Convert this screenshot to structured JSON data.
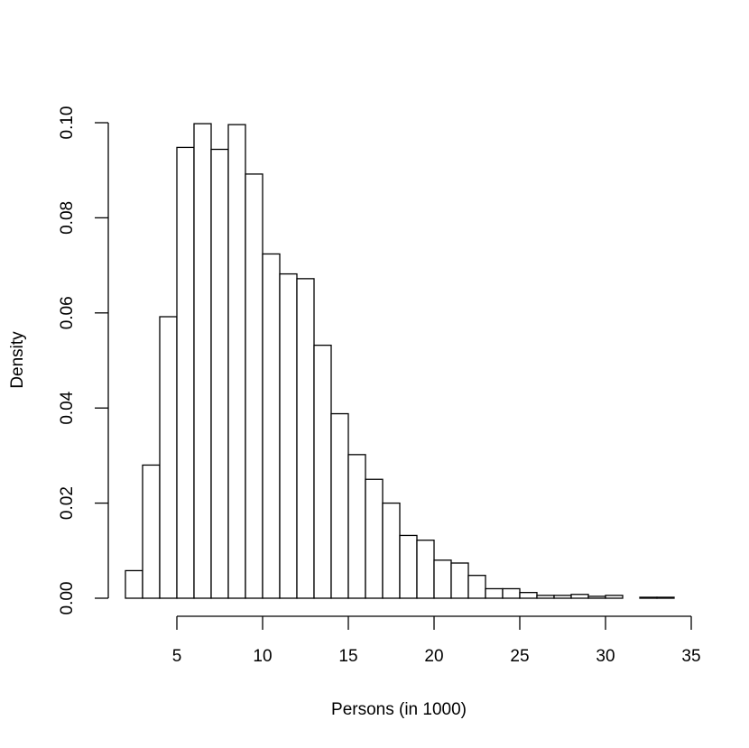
{
  "chart_data": {
    "type": "bar",
    "subtype": "histogram",
    "xlabel": "Persons (in 1000)",
    "ylabel": "Density",
    "bin_width": 1,
    "bins": [
      {
        "x0": 2,
        "x1": 3,
        "density": 0.0058
      },
      {
        "x0": 3,
        "x1": 4,
        "density": 0.028
      },
      {
        "x0": 4,
        "x1": 5,
        "density": 0.0592
      },
      {
        "x0": 5,
        "x1": 6,
        "density": 0.0948
      },
      {
        "x0": 6,
        "x1": 7,
        "density": 0.0998
      },
      {
        "x0": 7,
        "x1": 8,
        "density": 0.0944
      },
      {
        "x0": 8,
        "x1": 9,
        "density": 0.0996
      },
      {
        "x0": 9,
        "x1": 10,
        "density": 0.0892
      },
      {
        "x0": 10,
        "x1": 11,
        "density": 0.0724
      },
      {
        "x0": 11,
        "x1": 12,
        "density": 0.0682
      },
      {
        "x0": 12,
        "x1": 13,
        "density": 0.0672
      },
      {
        "x0": 13,
        "x1": 14,
        "density": 0.0532
      },
      {
        "x0": 14,
        "x1": 15,
        "density": 0.0388
      },
      {
        "x0": 15,
        "x1": 16,
        "density": 0.0302
      },
      {
        "x0": 16,
        "x1": 17,
        "density": 0.025
      },
      {
        "x0": 17,
        "x1": 18,
        "density": 0.02
      },
      {
        "x0": 18,
        "x1": 19,
        "density": 0.0132
      },
      {
        "x0": 19,
        "x1": 20,
        "density": 0.0122
      },
      {
        "x0": 20,
        "x1": 21,
        "density": 0.008
      },
      {
        "x0": 21,
        "x1": 22,
        "density": 0.0074
      },
      {
        "x0": 22,
        "x1": 23,
        "density": 0.0048
      },
      {
        "x0": 23,
        "x1": 24,
        "density": 0.002
      },
      {
        "x0": 24,
        "x1": 25,
        "density": 0.002
      },
      {
        "x0": 25,
        "x1": 26,
        "density": 0.0012
      },
      {
        "x0": 26,
        "x1": 27,
        "density": 0.0006
      },
      {
        "x0": 27,
        "x1": 28,
        "density": 0.0006
      },
      {
        "x0": 28,
        "x1": 29,
        "density": 0.0008
      },
      {
        "x0": 29,
        "x1": 30,
        "density": 0.0004
      },
      {
        "x0": 30,
        "x1": 31,
        "density": 0.0006
      },
      {
        "x0": 31,
        "x1": 32,
        "density": 0.0
      },
      {
        "x0": 32,
        "x1": 33,
        "density": 0.0002
      },
      {
        "x0": 33,
        "x1": 34,
        "density": 0.0002
      }
    ],
    "x_ticks": [
      "5",
      "10",
      "15",
      "20",
      "25",
      "30",
      "35"
    ],
    "y_ticks": [
      "0.00",
      "0.02",
      "0.04",
      "0.06",
      "0.08",
      "0.10"
    ],
    "xlim": [
      2,
      34
    ],
    "ylim": [
      0,
      0.1
    ],
    "grid": false,
    "legend": "none",
    "colors": {
      "bar_fill": "#ffffff",
      "bar_stroke": "#000000",
      "background": "#ffffff"
    }
  }
}
